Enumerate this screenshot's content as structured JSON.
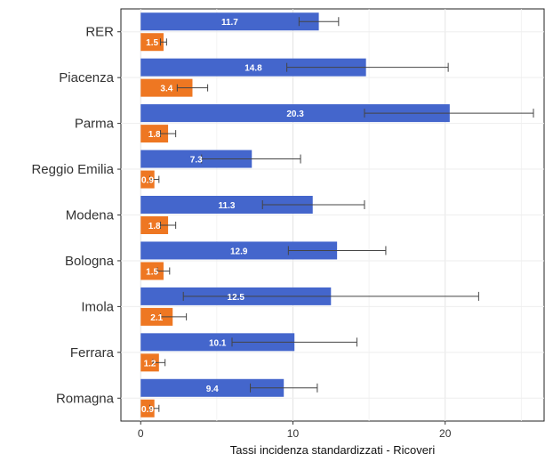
{
  "chart_data": {
    "type": "bar",
    "orientation": "horizontal",
    "categories": [
      "RER",
      "Piacenza",
      "Parma",
      "Reggio Emilia",
      "Modena",
      "Bologna",
      "Imola",
      "Ferrara",
      "Romagna"
    ],
    "series": [
      {
        "color": "#4466cc",
        "values": [
          11.7,
          14.8,
          20.3,
          7.3,
          11.3,
          12.9,
          12.5,
          10.1,
          9.4
        ],
        "labels": [
          "11.7",
          "14.8",
          "20.3",
          "7.3",
          "11.3",
          "12.9",
          "12.5",
          "10.1",
          "9.4"
        ],
        "error_low": [
          10.4,
          9.6,
          14.7,
          4.0,
          8.0,
          9.7,
          2.8,
          6.0,
          7.2
        ],
        "error_high": [
          13.0,
          20.2,
          25.8,
          10.5,
          14.7,
          16.1,
          22.2,
          14.2,
          11.6
        ]
      },
      {
        "color": "#ee7722",
        "values": [
          1.5,
          3.4,
          1.8,
          0.9,
          1.8,
          1.5,
          2.1,
          1.2,
          0.9
        ],
        "labels": [
          "1.5",
          "3.4",
          "1.8",
          "0.9",
          "1.8",
          "1.5",
          "2.1",
          "1.2",
          "0.9"
        ],
        "error_low": [
          1.3,
          2.4,
          1.3,
          0.6,
          1.3,
          1.1,
          1.3,
          0.8,
          0.6
        ],
        "error_high": [
          1.7,
          4.4,
          2.3,
          1.2,
          2.3,
          1.9,
          3.0,
          1.6,
          1.2
        ]
      }
    ],
    "xlabel": "Tassi incidenza standardizzati - Ricoveri",
    "ylabel": "",
    "xlim": [
      -1.3,
      26.5
    ],
    "xticks": [
      "0",
      "10",
      "20"
    ],
    "grid": true,
    "legend": "none"
  }
}
